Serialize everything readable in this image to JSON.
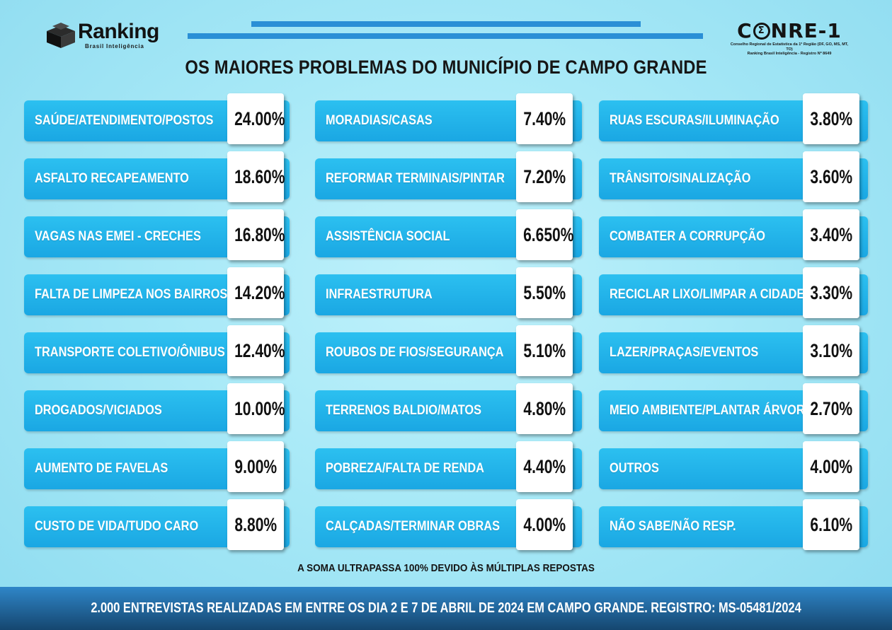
{
  "logos": {
    "ranking": {
      "name": "Ranking",
      "subtitle": "Brasil Inteligência"
    },
    "conre": {
      "name_left": "C",
      "name_emblem": "Σ",
      "name_right": "NRE-1",
      "subtitle_line1": "Conselho Regional de Estatística da 1ª Região (DF, GO, MS, MT, TO)",
      "subtitle_line2": "Ranking Brasil Inteligência - Registro Nº 8649"
    }
  },
  "colors": {
    "row_bg": "#1faee7",
    "header_bar": "#2a8fd6",
    "footer_bg": "#1d5f95"
  },
  "chart_data": {
    "type": "table",
    "title": "OS MAIORES PROBLEMAS DO MUNICÍPIO DE CAMPO GRANDE",
    "unit": "%",
    "columns": [
      [
        {
          "label": "SAÚDE/ATENDIMENTO/POSTOS",
          "value": 24.0,
          "display": "24.00%"
        },
        {
          "label": "ASFALTO RECAPEAMENTO",
          "value": 18.6,
          "display": "18.60%"
        },
        {
          "label": "VAGAS NAS EMEI - CRECHES",
          "value": 16.8,
          "display": "16.80%"
        },
        {
          "label": "FALTA DE LIMPEZA NOS BAIRROS",
          "value": 14.2,
          "display": "14.20%"
        },
        {
          "label": "TRANSPORTE COLETIVO/ÔNIBUS",
          "value": 12.4,
          "display": "12.40%"
        },
        {
          "label": "DROGADOS/VICIADOS",
          "value": 10.0,
          "display": "10.00%"
        },
        {
          "label": "AUMENTO DE FAVELAS",
          "value": 9.0,
          "display": "9.00%"
        },
        {
          "label": "CUSTO DE VIDA/TUDO CARO",
          "value": 8.8,
          "display": "8.80%"
        }
      ],
      [
        {
          "label": "MORADIAS/CASAS",
          "value": 7.4,
          "display": "7.40%"
        },
        {
          "label": "REFORMAR TERMINAIS/PINTAR",
          "value": 7.2,
          "display": "7.20%"
        },
        {
          "label": "ASSISTÊNCIA SOCIAL",
          "value": 6.65,
          "display": "6.650%"
        },
        {
          "label": "INFRAESTRUTURA",
          "value": 5.5,
          "display": "5.50%"
        },
        {
          "label": "ROUBOS DE FIOS/SEGURANÇA",
          "value": 5.1,
          "display": "5.10%"
        },
        {
          "label": "TERRENOS BALDIO/MATOS",
          "value": 4.8,
          "display": "4.80%"
        },
        {
          "label": "POBREZA/FALTA DE RENDA",
          "value": 4.4,
          "display": "4.40%"
        },
        {
          "label": "CALÇADAS/TERMINAR OBRAS",
          "value": 4.0,
          "display": "4.00%"
        }
      ],
      [
        {
          "label": "RUAS ESCURAS/ILUMINAÇÃO",
          "value": 3.8,
          "display": "3.80%"
        },
        {
          "label": "TRÂNSITO/SINALIZAÇÃO",
          "value": 3.6,
          "display": "3.60%"
        },
        {
          "label": "COMBATER A CORRUPÇÃO",
          "value": 3.4,
          "display": "3.40%"
        },
        {
          "label": "RECICLAR LIXO/LIMPAR A CIDADE",
          "value": 3.3,
          "display": "3.30%"
        },
        {
          "label": "LAZER/PRAÇAS/EVENTOS",
          "value": 3.1,
          "display": "3.10%"
        },
        {
          "label": "MEIO AMBIENTE/PLANTAR ÁRVORES",
          "value": 2.7,
          "display": "2.70%"
        },
        {
          "label": "OUTROS",
          "value": 4.0,
          "display": "4.00%"
        },
        {
          "label": "NÃO SABE/NÃO RESP.",
          "value": 6.1,
          "display": "6.10%"
        }
      ]
    ]
  },
  "note": "A SOMA ULTRAPASSA 100% DEVIDO ÀS MÚLTIPLAS REPOSTAS",
  "footer": "2.000 ENTREVISTAS REALIZADAS EM ENTRE OS DIA 2 E 7 DE ABRIL DE 2024 EM CAMPO GRANDE. REGISTRO: MS-05481/2024"
}
